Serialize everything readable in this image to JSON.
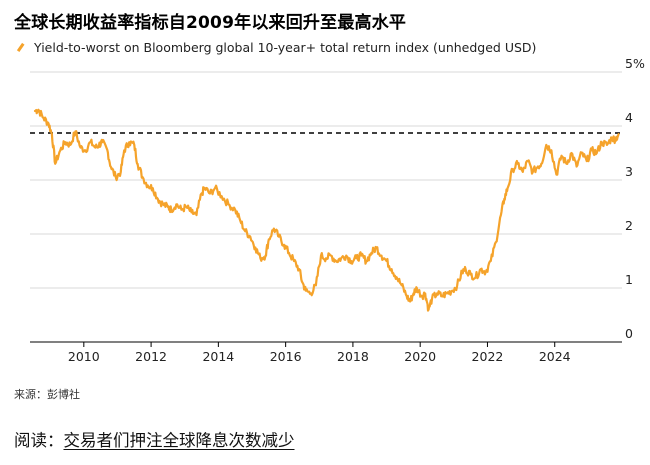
{
  "header": {
    "title": "全球长期收益率指标自2009年以来回升至最高水平"
  },
  "source": "来源：彭博社",
  "read_more": {
    "prefix": "阅读：",
    "link": "交易者们押注全球降息次数减少"
  },
  "colors": {
    "series": "#f5a32b",
    "grid": "#d9d9d9",
    "reference": "#000000"
  },
  "chart_data": {
    "type": "line",
    "title": "全球长期收益率指标自2009年以来回升至最高水平",
    "legend_position": "top-left",
    "grid": true,
    "xlim": [
      2008.4,
      2026.0
    ],
    "ylim": [
      0,
      5
    ],
    "x_ticks": [
      2010,
      2012,
      2014,
      2016,
      2018,
      2020,
      2022,
      2024
    ],
    "y_ticks": [
      {
        "value": 0,
        "label": "0"
      },
      {
        "value": 1,
        "label": "1"
      },
      {
        "value": 2,
        "label": "2"
      },
      {
        "value": 3,
        "label": "3"
      },
      {
        "value": 4,
        "label": "4"
      },
      {
        "value": 5,
        "label": "5%"
      }
    ],
    "reference_line": {
      "y": 3.87,
      "style": "dashed"
    },
    "series": [
      {
        "name": "Yield-to-worst on Bloomberg global 10-year+ total return index (unhedged USD)",
        "x": [
          2008.55,
          2008.65,
          2008.8,
          2008.95,
          2009.05,
          2009.15,
          2009.3,
          2009.45,
          2009.6,
          2009.75,
          2009.9,
          2010.05,
          2010.2,
          2010.35,
          2010.45,
          2010.55,
          2010.7,
          2010.8,
          2010.95,
          2011.1,
          2011.2,
          2011.35,
          2011.5,
          2011.6,
          2011.75,
          2011.9,
          2012.05,
          2012.2,
          2012.35,
          2012.5,
          2012.6,
          2012.75,
          2012.9,
          2013.05,
          2013.2,
          2013.35,
          2013.5,
          2013.6,
          2013.75,
          2013.9,
          2014.1,
          2014.3,
          2014.5,
          2014.65,
          2014.8,
          2014.95,
          2015.1,
          2015.25,
          2015.4,
          2015.5,
          2015.65,
          2015.8,
          2015.95,
          2016.1,
          2016.25,
          2016.4,
          2016.5,
          2016.6,
          2016.75,
          2016.9,
          2017.05,
          2017.2,
          2017.35,
          2017.5,
          2017.65,
          2017.8,
          2017.95,
          2018.1,
          2018.25,
          2018.4,
          2018.55,
          2018.7,
          2018.85,
          2019.0,
          2019.15,
          2019.3,
          2019.45,
          2019.6,
          2019.7,
          2019.8,
          2019.9,
          2020.05,
          2020.15,
          2020.25,
          2020.35,
          2020.5,
          2020.65,
          2020.8,
          2020.95,
          2021.1,
          2021.25,
          2021.35,
          2021.5,
          2021.65,
          2021.8,
          2021.95,
          2022.1,
          2022.25,
          2022.4,
          2022.5,
          2022.6,
          2022.75,
          2022.9,
          2023.05,
          2023.2,
          2023.35,
          2023.5,
          2023.6,
          2023.75,
          2023.9,
          2024.05,
          2024.2,
          2024.35,
          2024.5,
          2024.65,
          2024.8,
          2024.95,
          2025.1,
          2025.25,
          2025.4,
          2025.55,
          2025.7,
          2025.8,
          2025.9
        ],
        "values": [
          4.28,
          4.3,
          4.15,
          4.05,
          3.85,
          3.3,
          3.55,
          3.7,
          3.65,
          3.9,
          3.6,
          3.55,
          3.7,
          3.6,
          3.65,
          3.7,
          3.55,
          3.25,
          3.05,
          3.15,
          3.55,
          3.7,
          3.65,
          3.3,
          3.05,
          2.9,
          2.85,
          2.65,
          2.55,
          2.5,
          2.45,
          2.55,
          2.45,
          2.5,
          2.4,
          2.35,
          2.75,
          2.85,
          2.75,
          2.85,
          2.7,
          2.55,
          2.45,
          2.25,
          2.05,
          1.95,
          1.75,
          1.55,
          1.6,
          1.9,
          2.1,
          1.95,
          1.8,
          1.65,
          1.5,
          1.35,
          1.1,
          0.95,
          0.9,
          1.05,
          1.6,
          1.55,
          1.6,
          1.5,
          1.55,
          1.6,
          1.5,
          1.55,
          1.6,
          1.5,
          1.65,
          1.75,
          1.6,
          1.5,
          1.35,
          1.2,
          1.05,
          0.85,
          0.75,
          0.9,
          1.0,
          0.85,
          0.9,
          0.6,
          0.8,
          0.9,
          0.85,
          0.9,
          0.95,
          1.05,
          1.3,
          1.35,
          1.25,
          1.2,
          1.35,
          1.3,
          1.5,
          1.85,
          2.35,
          2.65,
          2.85,
          3.2,
          3.3,
          3.15,
          3.35,
          3.15,
          3.25,
          3.3,
          3.65,
          3.55,
          3.1,
          3.45,
          3.3,
          3.5,
          3.25,
          3.5,
          3.35,
          3.55,
          3.5,
          3.7,
          3.65,
          3.78,
          3.75,
          3.85
        ]
      }
    ]
  }
}
